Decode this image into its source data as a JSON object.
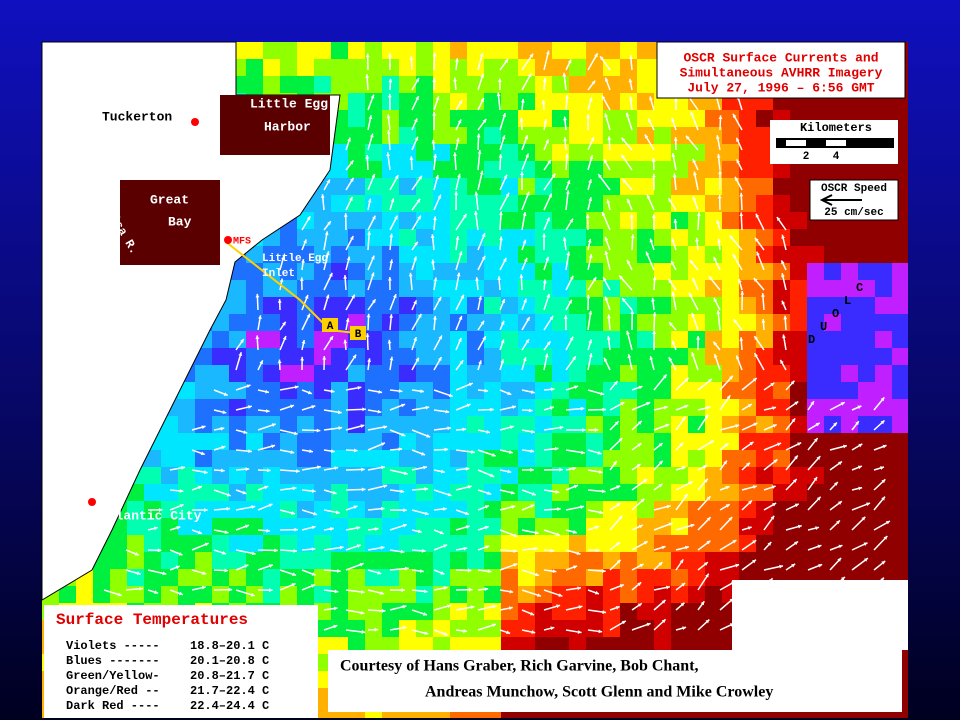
{
  "title": {
    "lines": [
      "OSCR Surface  Currents and",
      "Simultaneous AVHRR Imagery",
      "July 27, 1996 – 6:56 GMT"
    ]
  },
  "scale": {
    "label": "Kilometers",
    "ticks": [
      2,
      4
    ]
  },
  "speed_key": {
    "label": "OSCR Speed",
    "value": "25 cm/sec"
  },
  "places": {
    "tuckerton": "Tuckerton",
    "little_egg_harbor": [
      "Little Egg",
      "Harbor"
    ],
    "great_bay": [
      "Great",
      "Bay"
    ],
    "mullica": "Mullica R.",
    "mfs": "MFS",
    "inlet": [
      "Little Egg",
      "Inlet"
    ],
    "a": "A",
    "b": "B",
    "cloud": [
      "C",
      "L",
      "O",
      "U",
      "D"
    ],
    "atlantic_city": "Atlantic City"
  },
  "legend": {
    "title": "Surface Temperatures",
    "rows": [
      [
        "Violets -----",
        "18.8–20.1 C"
      ],
      [
        "Blues -------",
        "20.1–20.8 C"
      ],
      [
        "Green/Yellow-",
        "20.8–21.7 C"
      ],
      [
        "Orange/Red --",
        "21.7–22.4 C"
      ],
      [
        "Dark Red ----",
        "22.4–24.4 C"
      ]
    ]
  },
  "credit": [
    "Courtesy of Hans Graber, Rich Garvine, Bob Chant,",
    "Andreas Munchow, Scott Glenn and Mike Crowley"
  ]
}
